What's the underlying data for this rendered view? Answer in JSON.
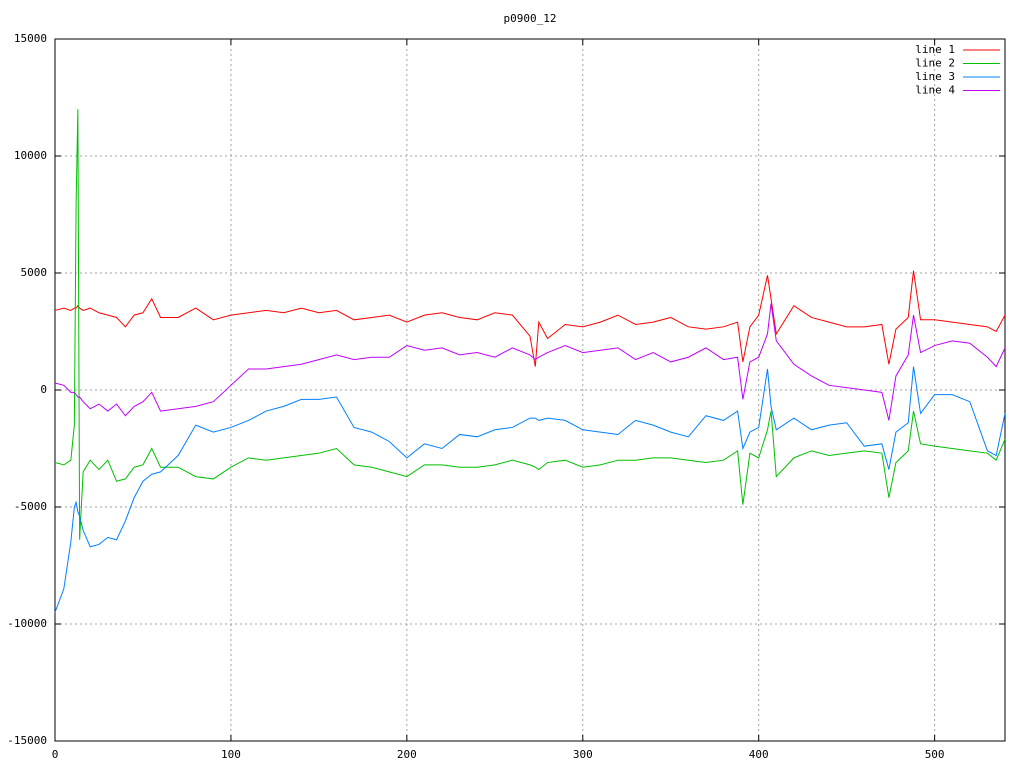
{
  "chart_data": {
    "type": "line",
    "title": "p0900_12",
    "x": [
      0,
      5,
      9,
      11,
      12,
      13,
      14,
      16,
      20,
      25,
      30,
      35,
      40,
      45,
      50,
      55,
      60,
      70,
      80,
      90,
      100,
      110,
      120,
      130,
      140,
      150,
      160,
      170,
      180,
      190,
      200,
      210,
      220,
      230,
      240,
      250,
      260,
      270,
      273,
      275,
      280,
      290,
      300,
      310,
      320,
      330,
      340,
      350,
      360,
      370,
      380,
      388,
      391,
      395,
      400,
      405,
      407,
      410,
      420,
      430,
      440,
      450,
      460,
      470,
      474,
      478,
      485,
      488,
      492,
      500,
      510,
      520,
      530,
      535,
      540
    ],
    "series": [
      {
        "name": "line 1",
        "color": "#ff0000",
        "values": [
          3400,
          3500,
          3400,
          3500,
          3500,
          3600,
          3500,
          3400,
          3500,
          3300,
          3200,
          3100,
          2700,
          3200,
          3300,
          3900,
          3100,
          3100,
          3500,
          3000,
          3200,
          3300,
          3400,
          3300,
          3500,
          3300,
          3400,
          3000,
          3100,
          3200,
          2900,
          3200,
          3300,
          3100,
          3000,
          3300,
          3200,
          2300,
          1000,
          2900,
          2200,
          2800,
          2700,
          2900,
          3200,
          2800,
          2900,
          3100,
          2700,
          2600,
          2700,
          2900,
          1200,
          2700,
          3200,
          4900,
          3900,
          2400,
          3600,
          3100,
          2900,
          2700,
          2700,
          2800,
          1100,
          2600,
          3100,
          5100,
          3000,
          3000,
          2900,
          2800,
          2700,
          2500,
          3200
        ]
      },
      {
        "name": "line 2",
        "color": "#00c000",
        "values": [
          -3100,
          -3200,
          -3000,
          -1500,
          8000,
          12000,
          -6400,
          -3500,
          -3000,
          -3400,
          -3000,
          -3900,
          -3800,
          -3300,
          -3200,
          -2500,
          -3300,
          -3300,
          -3700,
          -3800,
          -3300,
          -2900,
          -3000,
          -2900,
          -2800,
          -2700,
          -2500,
          -3200,
          -3300,
          -3500,
          -3700,
          -3200,
          -3200,
          -3300,
          -3300,
          -3200,
          -3000,
          -3200,
          -3300,
          -3400,
          -3100,
          -3000,
          -3300,
          -3200,
          -3000,
          -3000,
          -2900,
          -2900,
          -3000,
          -3100,
          -3000,
          -2600,
          -4900,
          -2700,
          -2900,
          -1700,
          -900,
          -3700,
          -2900,
          -2600,
          -2800,
          -2700,
          -2600,
          -2700,
          -4600,
          -3100,
          -2600,
          -900,
          -2300,
          -2400,
          -2500,
          -2600,
          -2700,
          -3000,
          -2100
        ]
      },
      {
        "name": "line 3",
        "color": "#0080ff",
        "values": [
          -9500,
          -8500,
          -6500,
          -5000,
          -4800,
          -5200,
          -5400,
          -6000,
          -6700,
          -6600,
          -6300,
          -6400,
          -5600,
          -4600,
          -3900,
          -3600,
          -3500,
          -2800,
          -1500,
          -1800,
          -1600,
          -1300,
          -900,
          -700,
          -400,
          -400,
          -300,
          -1600,
          -1800,
          -2200,
          -2900,
          -2300,
          -2500,
          -1900,
          -2000,
          -1700,
          -1600,
          -1200,
          -1200,
          -1300,
          -1200,
          -1300,
          -1700,
          -1800,
          -1900,
          -1300,
          -1500,
          -1800,
          -2000,
          -1100,
          -1300,
          -900,
          -2500,
          -1800,
          -1600,
          900,
          -700,
          -1700,
          -1200,
          -1700,
          -1500,
          -1400,
          -2400,
          -2300,
          -3400,
          -1800,
          -1400,
          1000,
          -1000,
          -200,
          -200,
          -500,
          -2600,
          -2800,
          -1000
        ]
      },
      {
        "name": "line 4",
        "color": "#c000ff",
        "values": [
          300,
          200,
          -100,
          -100,
          -200,
          -300,
          -300,
          -500,
          -800,
          -600,
          -900,
          -600,
          -1100,
          -700,
          -500,
          -100,
          -900,
          -800,
          -700,
          -500,
          200,
          900,
          900,
          1000,
          1100,
          1300,
          1500,
          1300,
          1400,
          1400,
          1900,
          1700,
          1800,
          1500,
          1600,
          1400,
          1800,
          1500,
          1300,
          1400,
          1600,
          1900,
          1600,
          1700,
          1800,
          1300,
          1600,
          1200,
          1400,
          1800,
          1300,
          1400,
          -400,
          1200,
          1400,
          2400,
          3700,
          2100,
          1100,
          600,
          200,
          100,
          0,
          -100,
          -1300,
          600,
          1500,
          3200,
          1600,
          1900,
          2100,
          2000,
          1400,
          1000,
          1800
        ]
      }
    ],
    "xlim": [
      0,
      540
    ],
    "xticks": [
      0,
      100,
      200,
      300,
      400,
      500
    ],
    "ylim": [
      -15000,
      15000
    ],
    "yticks": [
      -15000,
      -10000,
      -5000,
      0,
      5000,
      10000,
      15000
    ],
    "grid": true,
    "legend": "top-right"
  }
}
